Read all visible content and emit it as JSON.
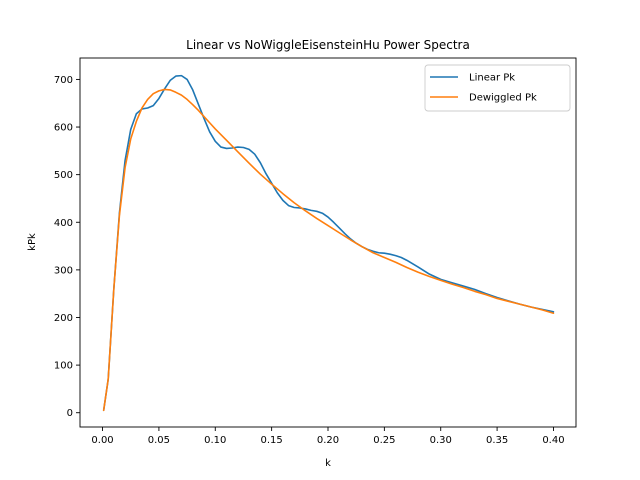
{
  "chart_data": {
    "type": "line",
    "title": "Linear vs NoWiggleEisensteinHu Power Spectra",
    "xlabel": "k",
    "ylabel": "kPk",
    "xlim": [
      -0.02,
      0.42
    ],
    "ylim": [
      -30,
      745
    ],
    "xticks": [
      0.0,
      0.05,
      0.1,
      0.15,
      0.2,
      0.25,
      0.3,
      0.35,
      0.4
    ],
    "xtick_labels": [
      "0.00",
      "0.05",
      "0.10",
      "0.15",
      "0.20",
      "0.25",
      "0.30",
      "0.35",
      "0.40"
    ],
    "yticks": [
      0,
      100,
      200,
      300,
      400,
      500,
      600,
      700
    ],
    "ytick_labels": [
      "0",
      "100",
      "200",
      "300",
      "400",
      "500",
      "600",
      "700"
    ],
    "grid": false,
    "legend_position": "top-right",
    "series": [
      {
        "name": "Linear Pk",
        "color": "#1f77b4",
        "x": [
          0.001,
          0.005,
          0.01,
          0.015,
          0.02,
          0.025,
          0.03,
          0.035,
          0.04,
          0.045,
          0.05,
          0.055,
          0.06,
          0.065,
          0.07,
          0.075,
          0.08,
          0.085,
          0.09,
          0.095,
          0.1,
          0.105,
          0.11,
          0.115,
          0.12,
          0.125,
          0.13,
          0.135,
          0.14,
          0.145,
          0.15,
          0.155,
          0.16,
          0.165,
          0.17,
          0.175,
          0.18,
          0.185,
          0.19,
          0.195,
          0.2,
          0.205,
          0.21,
          0.215,
          0.22,
          0.225,
          0.23,
          0.235,
          0.24,
          0.245,
          0.25,
          0.255,
          0.26,
          0.265,
          0.27,
          0.28,
          0.29,
          0.3,
          0.31,
          0.32,
          0.33,
          0.34,
          0.35,
          0.36,
          0.37,
          0.38,
          0.39,
          0.4
        ],
        "y": [
          5,
          70,
          260,
          420,
          530,
          595,
          628,
          638,
          640,
          645,
          660,
          680,
          698,
          707,
          708,
          700,
          678,
          648,
          618,
          590,
          570,
          558,
          555,
          556,
          558,
          557,
          553,
          543,
          525,
          502,
          482,
          462,
          446,
          435,
          431,
          430,
          428,
          425,
          423,
          419,
          411,
          400,
          388,
          376,
          365,
          356,
          349,
          343,
          339,
          336,
          335,
          333,
          330,
          326,
          320,
          306,
          291,
          280,
          273,
          266,
          259,
          250,
          242,
          235,
          228,
          222,
          217,
          212
        ]
      },
      {
        "name": "Dewiggled Pk",
        "color": "#ff7f0e",
        "x": [
          0.001,
          0.005,
          0.01,
          0.015,
          0.02,
          0.025,
          0.03,
          0.035,
          0.04,
          0.045,
          0.05,
          0.055,
          0.06,
          0.065,
          0.07,
          0.075,
          0.08,
          0.085,
          0.09,
          0.095,
          0.1,
          0.11,
          0.12,
          0.13,
          0.14,
          0.15,
          0.16,
          0.17,
          0.18,
          0.19,
          0.2,
          0.21,
          0.22,
          0.23,
          0.24,
          0.25,
          0.26,
          0.27,
          0.28,
          0.29,
          0.3,
          0.31,
          0.32,
          0.33,
          0.34,
          0.35,
          0.36,
          0.37,
          0.38,
          0.39,
          0.4
        ],
        "y": [
          5,
          70,
          260,
          415,
          515,
          575,
          612,
          640,
          658,
          670,
          676,
          679,
          678,
          673,
          667,
          658,
          647,
          635,
          622,
          609,
          596,
          572,
          548,
          524,
          501,
          480,
          460,
          441,
          424,
          408,
          393,
          378,
          363,
          349,
          336,
          326,
          316,
          305,
          295,
          286,
          278,
          270,
          263,
          255,
          248,
          240,
          234,
          228,
          222,
          216,
          209
        ]
      }
    ]
  }
}
